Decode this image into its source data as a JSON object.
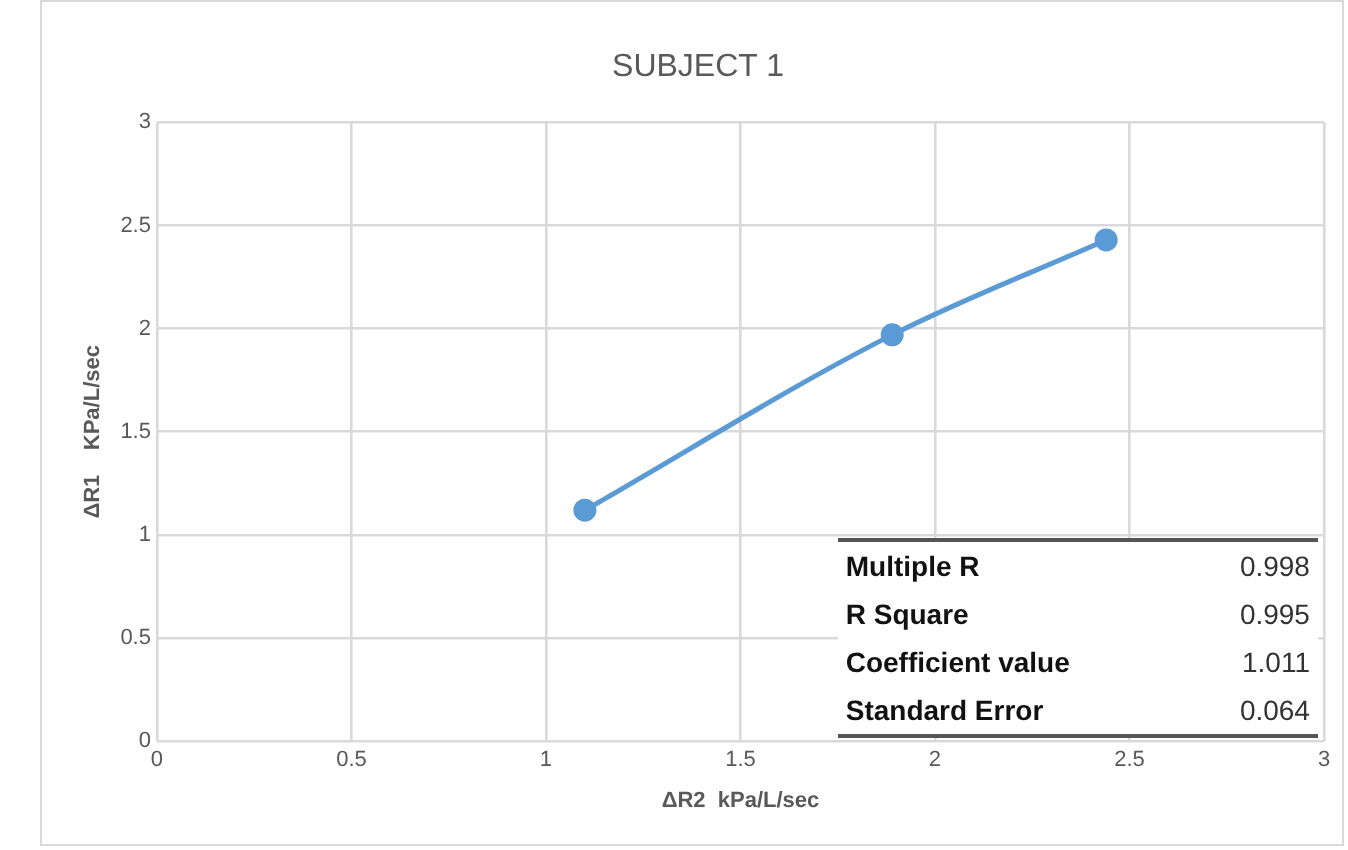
{
  "chart_data": {
    "type": "line",
    "title": "SUBJECT 1",
    "xlabel": "ΔR2  kPa/L/sec",
    "ylabel": "ΔR1    KPa/L/sec",
    "x": [
      1.1,
      1.89,
      2.44
    ],
    "series": [
      {
        "color": "#5b9bd5",
        "values": [
          1.12,
          1.97,
          2.43
        ]
      }
    ],
    "xlim": [
      0,
      3
    ],
    "xticks": [
      0,
      0.5,
      1,
      1.5,
      2,
      2.5,
      3
    ],
    "ylim": [
      0,
      3
    ],
    "yticks": [
      0,
      0.5,
      1,
      1.5,
      2,
      2.5,
      3
    ],
    "grid": true,
    "legend": false,
    "marker": "circle",
    "line_style": "solid",
    "annotations": [
      "Multiple R",
      "0.998",
      "R Square",
      "0.995",
      "Coefficient value",
      "1.011",
      "Standard Error",
      "0.064"
    ]
  }
}
